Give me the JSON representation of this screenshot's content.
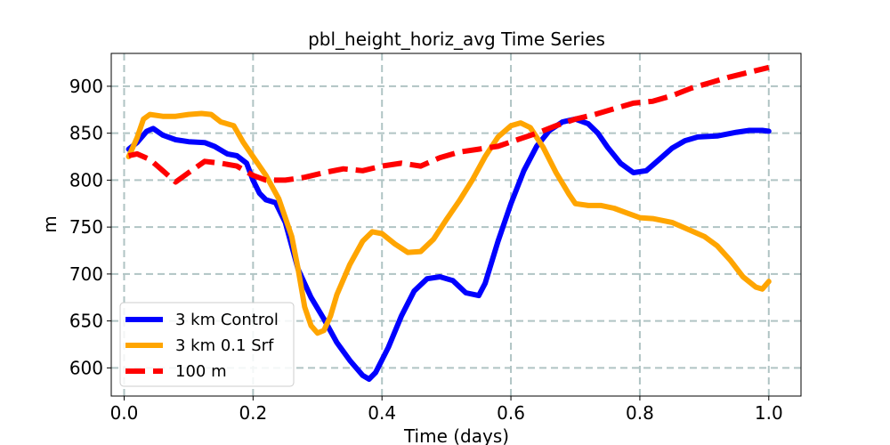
{
  "chart_data": {
    "type": "line",
    "title": "pbl_height_horiz_avg Time Series",
    "xlabel": "Time (days)",
    "ylabel": "m",
    "xlim": [
      -0.02,
      1.05
    ],
    "ylim": [
      570,
      935
    ],
    "xticks": [
      0.0,
      0.2,
      0.4,
      0.6,
      0.8,
      1.0
    ],
    "xtick_labels": [
      "0.0",
      "0.2",
      "0.4",
      "0.6",
      "0.8",
      "1.0"
    ],
    "yticks": [
      600,
      650,
      700,
      750,
      800,
      850,
      900
    ],
    "ytick_labels": [
      "600",
      "650",
      "700",
      "750",
      "800",
      "850",
      "900"
    ],
    "grid": true,
    "legend_position": "lower-left",
    "series": [
      {
        "name": "3 km Control",
        "color": "#0000ff",
        "style": "solid",
        "x": [
          0.007,
          0.02,
          0.035,
          0.045,
          0.06,
          0.08,
          0.1,
          0.125,
          0.14,
          0.16,
          0.175,
          0.19,
          0.2,
          0.21,
          0.22,
          0.235,
          0.25,
          0.27,
          0.29,
          0.31,
          0.33,
          0.35,
          0.37,
          0.38,
          0.39,
          0.41,
          0.43,
          0.45,
          0.47,
          0.49,
          0.51,
          0.53,
          0.55,
          0.56,
          0.58,
          0.6,
          0.62,
          0.64,
          0.66,
          0.68,
          0.7,
          0.72,
          0.735,
          0.75,
          0.77,
          0.79,
          0.81,
          0.83,
          0.85,
          0.87,
          0.89,
          0.92,
          0.95,
          0.97,
          0.99,
          1.0
        ],
        "y": [
          833,
          840,
          852,
          855,
          848,
          843,
          841,
          840,
          836,
          828,
          826,
          818,
          800,
          786,
          779,
          776,
          755,
          705,
          675,
          652,
          627,
          608,
          592,
          588,
          595,
          622,
          655,
          682,
          695,
          697,
          693,
          680,
          677,
          690,
          735,
          775,
          810,
          836,
          853,
          862,
          865,
          860,
          850,
          835,
          818,
          808,
          810,
          822,
          834,
          842,
          846,
          847,
          851,
          853,
          853,
          852
        ]
      },
      {
        "name": "3 km 0.1 Srf",
        "color": "#ffa500",
        "style": "solid",
        "x": [
          0.007,
          0.02,
          0.03,
          0.04,
          0.06,
          0.08,
          0.1,
          0.12,
          0.135,
          0.15,
          0.17,
          0.185,
          0.2,
          0.22,
          0.24,
          0.26,
          0.27,
          0.28,
          0.29,
          0.3,
          0.31,
          0.32,
          0.33,
          0.35,
          0.37,
          0.385,
          0.4,
          0.42,
          0.44,
          0.46,
          0.48,
          0.5,
          0.52,
          0.54,
          0.56,
          0.58,
          0.6,
          0.615,
          0.63,
          0.65,
          0.67,
          0.69,
          0.7,
          0.72,
          0.74,
          0.76,
          0.78,
          0.8,
          0.82,
          0.85,
          0.88,
          0.9,
          0.92,
          0.94,
          0.96,
          0.98,
          0.99,
          1.0
        ],
        "y": [
          825,
          845,
          865,
          870,
          868,
          868,
          870,
          871,
          870,
          862,
          858,
          840,
          825,
          805,
          780,
          740,
          705,
          665,
          645,
          637,
          640,
          655,
          678,
          710,
          735,
          745,
          743,
          732,
          723,
          724,
          737,
          758,
          778,
          800,
          825,
          846,
          858,
          861,
          856,
          835,
          808,
          785,
          775,
          773,
          773,
          770,
          765,
          760,
          759,
          755,
          746,
          740,
          730,
          715,
          697,
          686,
          684,
          692
        ]
      },
      {
        "name": "100 m",
        "color": "#ff0000",
        "style": "dashed",
        "x": [
          0.007,
          0.02,
          0.04,
          0.06,
          0.08,
          0.1,
          0.125,
          0.15,
          0.175,
          0.2,
          0.22,
          0.25,
          0.28,
          0.31,
          0.34,
          0.37,
          0.4,
          0.43,
          0.46,
          0.49,
          0.52,
          0.55,
          0.58,
          0.61,
          0.64,
          0.67,
          0.7,
          0.73,
          0.76,
          0.79,
          0.82,
          0.85,
          0.88,
          0.91,
          0.94,
          0.97,
          1.0
        ],
        "y": [
          826,
          828,
          822,
          810,
          798,
          808,
          820,
          818,
          815,
          805,
          800,
          800,
          803,
          808,
          812,
          810,
          815,
          818,
          815,
          824,
          830,
          833,
          836,
          843,
          850,
          858,
          865,
          870,
          876,
          882,
          884,
          890,
          898,
          904,
          910,
          915,
          920
        ]
      }
    ]
  }
}
